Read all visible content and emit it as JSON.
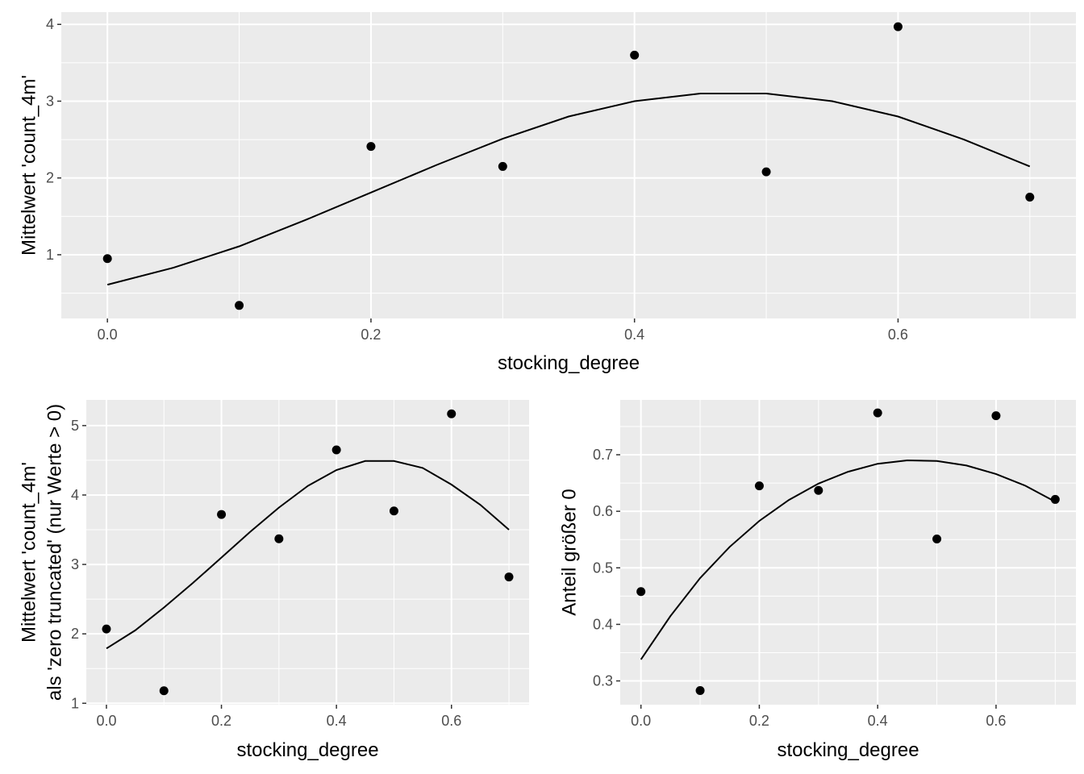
{
  "chart_data": [
    {
      "type": "scatter",
      "title": "",
      "xlabel": "stocking_degree",
      "ylabel": [
        "Mittelwert 'count_4m'"
      ],
      "xlim": [
        -0.035,
        0.735
      ],
      "ylim": [
        0.17,
        4.16
      ],
      "x_ticks": [
        0.0,
        0.2,
        0.4,
        0.6
      ],
      "x_tick_labels": [
        "0.0",
        "0.2",
        "0.4",
        "0.6"
      ],
      "y_ticks": [
        1,
        2,
        3,
        4
      ],
      "y_tick_labels": [
        "1",
        "2",
        "3",
        "4"
      ],
      "grid": true,
      "points": {
        "x": [
          0.0,
          0.1,
          0.2,
          0.3,
          0.4,
          0.5,
          0.6,
          0.7
        ],
        "y": [
          0.95,
          0.34,
          2.41,
          2.15,
          3.6,
          2.08,
          3.97,
          1.75
        ]
      },
      "fit_line": {
        "x": [
          0.0,
          0.05,
          0.1,
          0.15,
          0.2,
          0.25,
          0.3,
          0.35,
          0.4,
          0.45,
          0.5,
          0.55,
          0.6,
          0.65,
          0.7
        ],
        "y": [
          0.61,
          0.83,
          1.11,
          1.45,
          1.81,
          2.17,
          2.51,
          2.8,
          3.0,
          3.1,
          3.1,
          3.0,
          2.8,
          2.5,
          2.15
        ]
      }
    },
    {
      "type": "scatter",
      "title": "",
      "xlabel": "stocking_degree",
      "ylabel": [
        "Mittelwert 'count_4m'",
        "als 'zero truncated' (nur Werte > 0)"
      ],
      "xlim": [
        -0.035,
        0.735
      ],
      "ylim": [
        0.98,
        5.37
      ],
      "x_ticks": [
        0.0,
        0.2,
        0.4,
        0.6
      ],
      "x_tick_labels": [
        "0.0",
        "0.2",
        "0.4",
        "0.6"
      ],
      "y_ticks": [
        1,
        2,
        3,
        4,
        5
      ],
      "y_tick_labels": [
        "1",
        "2",
        "3",
        "4",
        "5"
      ],
      "grid": true,
      "points": {
        "x": [
          0.0,
          0.1,
          0.2,
          0.3,
          0.4,
          0.5,
          0.6,
          0.7
        ],
        "y": [
          2.07,
          1.18,
          3.72,
          3.37,
          4.65,
          3.77,
          5.17,
          2.82
        ]
      },
      "fit_line": {
        "x": [
          0.0,
          0.05,
          0.1,
          0.15,
          0.2,
          0.25,
          0.3,
          0.35,
          0.4,
          0.45,
          0.5,
          0.55,
          0.6,
          0.65,
          0.7
        ],
        "y": [
          1.79,
          2.05,
          2.38,
          2.73,
          3.1,
          3.47,
          3.82,
          4.13,
          4.36,
          4.49,
          4.49,
          4.39,
          4.15,
          3.86,
          3.5
        ]
      }
    },
    {
      "type": "scatter",
      "title": "",
      "xlabel": "stocking_degree",
      "ylabel": [
        "Anteil größer 0"
      ],
      "xlim": [
        -0.035,
        0.735
      ],
      "ylim": [
        0.258,
        0.797
      ],
      "x_ticks": [
        0.0,
        0.2,
        0.4,
        0.6
      ],
      "x_tick_labels": [
        "0.0",
        "0.2",
        "0.4",
        "0.6"
      ],
      "y_ticks": [
        0.3,
        0.4,
        0.5,
        0.6,
        0.7
      ],
      "y_tick_labels": [
        "0.3",
        "0.4",
        "0.5",
        "0.6",
        "0.7"
      ],
      "grid": true,
      "points": {
        "x": [
          0.0,
          0.1,
          0.2,
          0.3,
          0.4,
          0.5,
          0.6,
          0.7
        ],
        "y": [
          0.458,
          0.283,
          0.645,
          0.637,
          0.774,
          0.551,
          0.769,
          0.621
        ]
      },
      "fit_line": {
        "x": [
          0.0,
          0.05,
          0.1,
          0.15,
          0.2,
          0.25,
          0.3,
          0.35,
          0.4,
          0.45,
          0.5,
          0.55,
          0.6,
          0.65,
          0.7
        ],
        "y": [
          0.338,
          0.415,
          0.482,
          0.537,
          0.583,
          0.62,
          0.649,
          0.67,
          0.684,
          0.69,
          0.689,
          0.681,
          0.666,
          0.645,
          0.617
        ]
      }
    }
  ]
}
